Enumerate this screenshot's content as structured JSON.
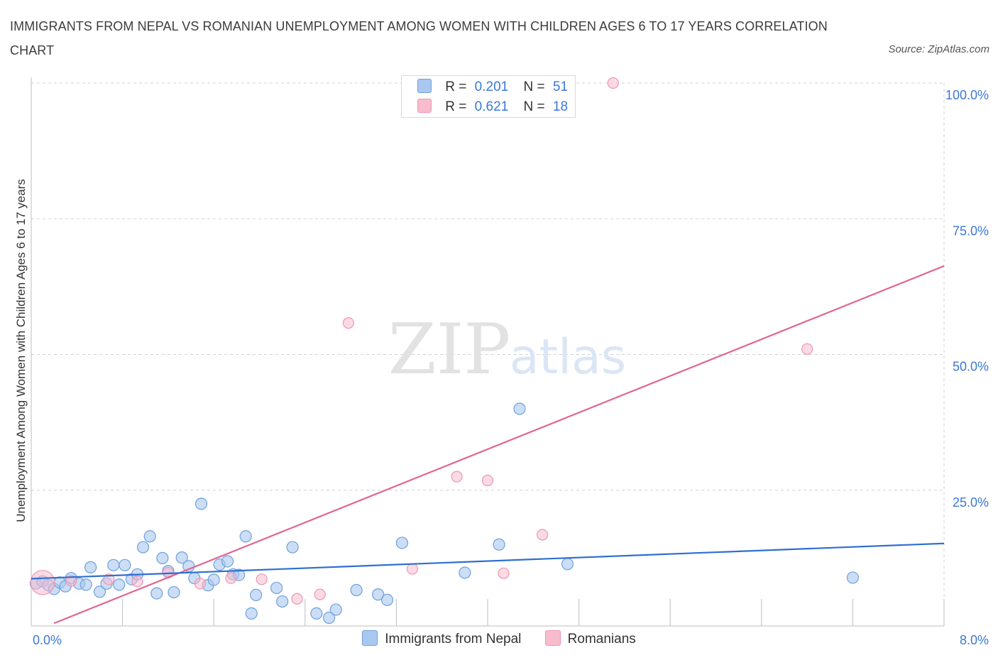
{
  "header": {
    "title": "IMMIGRANTS FROM NEPAL VS ROMANIAN UNEMPLOYMENT AMONG WOMEN WITH CHILDREN AGES 6 TO 17 YEARS CORRELATION CHART",
    "source": "Source: ZipAtlas.com"
  },
  "watermark": {
    "zip": "ZIP",
    "atlas": "atlas"
  },
  "legend_top": {
    "rows": [
      {
        "r_label": "R =",
        "r_value": "0.201",
        "n_label": "N =",
        "n_value": "51"
      },
      {
        "r_label": "R =",
        "r_value": "0.621",
        "n_label": "N =",
        "n_value": "18"
      }
    ]
  },
  "colors": {
    "nepal_fill": "#a9c8f0",
    "nepal_stroke": "#6fa0dc",
    "nepal_line": "#2f6fd0",
    "romanian_fill": "#f7bccd",
    "romanian_stroke": "#ee97b3",
    "romanian_line": "#e0668f",
    "axis_text": "#3b78d6",
    "grid": "#d0d0d0"
  },
  "chart_data": {
    "type": "scatter",
    "title": "IMMIGRANTS FROM NEPAL VS ROMANIAN UNEMPLOYMENT AMONG WOMEN WITH CHILDREN AGES 6 TO 17 YEARS CORRELATION CHART",
    "xlabel": "",
    "ylabel": "Unemployment Among Women with Children Ages 6 to 17 years",
    "xlim": [
      0,
      8
    ],
    "ylim": [
      0,
      100
    ],
    "x_tick_labels": [
      "0.0%",
      "8.0%"
    ],
    "y_ticks": [
      25,
      50,
      75,
      100
    ],
    "y_tick_labels": [
      "25.0%",
      "50.0%",
      "75.0%",
      "100.0%"
    ],
    "grid": true,
    "legend_position": "bottom",
    "series": [
      {
        "name": "Immigrants from Nepal",
        "r": 0.201,
        "n": 51,
        "trend": {
          "x": [
            0,
            8
          ],
          "y": [
            8.7,
            15.2
          ]
        },
        "points": [
          [
            0.04,
            7.8
          ],
          [
            0.1,
            8.2
          ],
          [
            0.15,
            7.5
          ],
          [
            0.2,
            6.8
          ],
          [
            0.25,
            8.0
          ],
          [
            0.3,
            7.3
          ],
          [
            0.35,
            8.8
          ],
          [
            0.42,
            7.8
          ],
          [
            0.48,
            7.6
          ],
          [
            0.52,
            10.8
          ],
          [
            0.6,
            6.3
          ],
          [
            0.66,
            7.8
          ],
          [
            0.72,
            11.2
          ],
          [
            0.77,
            7.6
          ],
          [
            0.82,
            11.2
          ],
          [
            0.88,
            8.6
          ],
          [
            0.93,
            9.5
          ],
          [
            0.98,
            14.5
          ],
          [
            1.04,
            16.5
          ],
          [
            1.1,
            6.0
          ],
          [
            1.15,
            12.5
          ],
          [
            1.2,
            10.1
          ],
          [
            1.25,
            6.2
          ],
          [
            1.32,
            12.6
          ],
          [
            1.38,
            11.0
          ],
          [
            1.43,
            8.8
          ],
          [
            1.49,
            22.5
          ],
          [
            1.55,
            7.5
          ],
          [
            1.6,
            8.5
          ],
          [
            1.65,
            11.3
          ],
          [
            1.72,
            11.9
          ],
          [
            1.77,
            9.5
          ],
          [
            1.82,
            9.4
          ],
          [
            1.88,
            16.5
          ],
          [
            1.93,
            2.3
          ],
          [
            1.97,
            5.7
          ],
          [
            2.15,
            7.0
          ],
          [
            2.2,
            4.5
          ],
          [
            2.29,
            14.5
          ],
          [
            2.5,
            2.3
          ],
          [
            2.61,
            1.5
          ],
          [
            2.67,
            3.0
          ],
          [
            2.85,
            6.6
          ],
          [
            3.04,
            5.8
          ],
          [
            3.12,
            4.8
          ],
          [
            3.25,
            15.3
          ],
          [
            3.8,
            9.8
          ],
          [
            4.1,
            15.0
          ],
          [
            4.28,
            40.0
          ],
          [
            4.7,
            11.4
          ],
          [
            7.2,
            8.9
          ]
        ]
      },
      {
        "name": "Romanians",
        "r": 0.621,
        "n": 18,
        "trend": {
          "x": [
            0,
            8
          ],
          "y": [
            -1.2,
            66.3
          ]
        },
        "points": [
          [
            0.1,
            8.0
          ],
          [
            0.35,
            8.3
          ],
          [
            0.68,
            8.6
          ],
          [
            0.93,
            8.2
          ],
          [
            1.2,
            9.8
          ],
          [
            1.48,
            7.8
          ],
          [
            1.75,
            8.8
          ],
          [
            2.02,
            8.6
          ],
          [
            2.33,
            5.0
          ],
          [
            2.53,
            5.8
          ],
          [
            2.78,
            55.8
          ],
          [
            3.34,
            10.5
          ],
          [
            3.73,
            27.5
          ],
          [
            4.0,
            26.8
          ],
          [
            4.14,
            9.7
          ],
          [
            4.48,
            16.8
          ],
          [
            5.1,
            100.0
          ],
          [
            6.8,
            51.0
          ]
        ]
      }
    ]
  },
  "legend_bottom": {
    "items": [
      "Immigrants from Nepal",
      "Romanians"
    ]
  }
}
